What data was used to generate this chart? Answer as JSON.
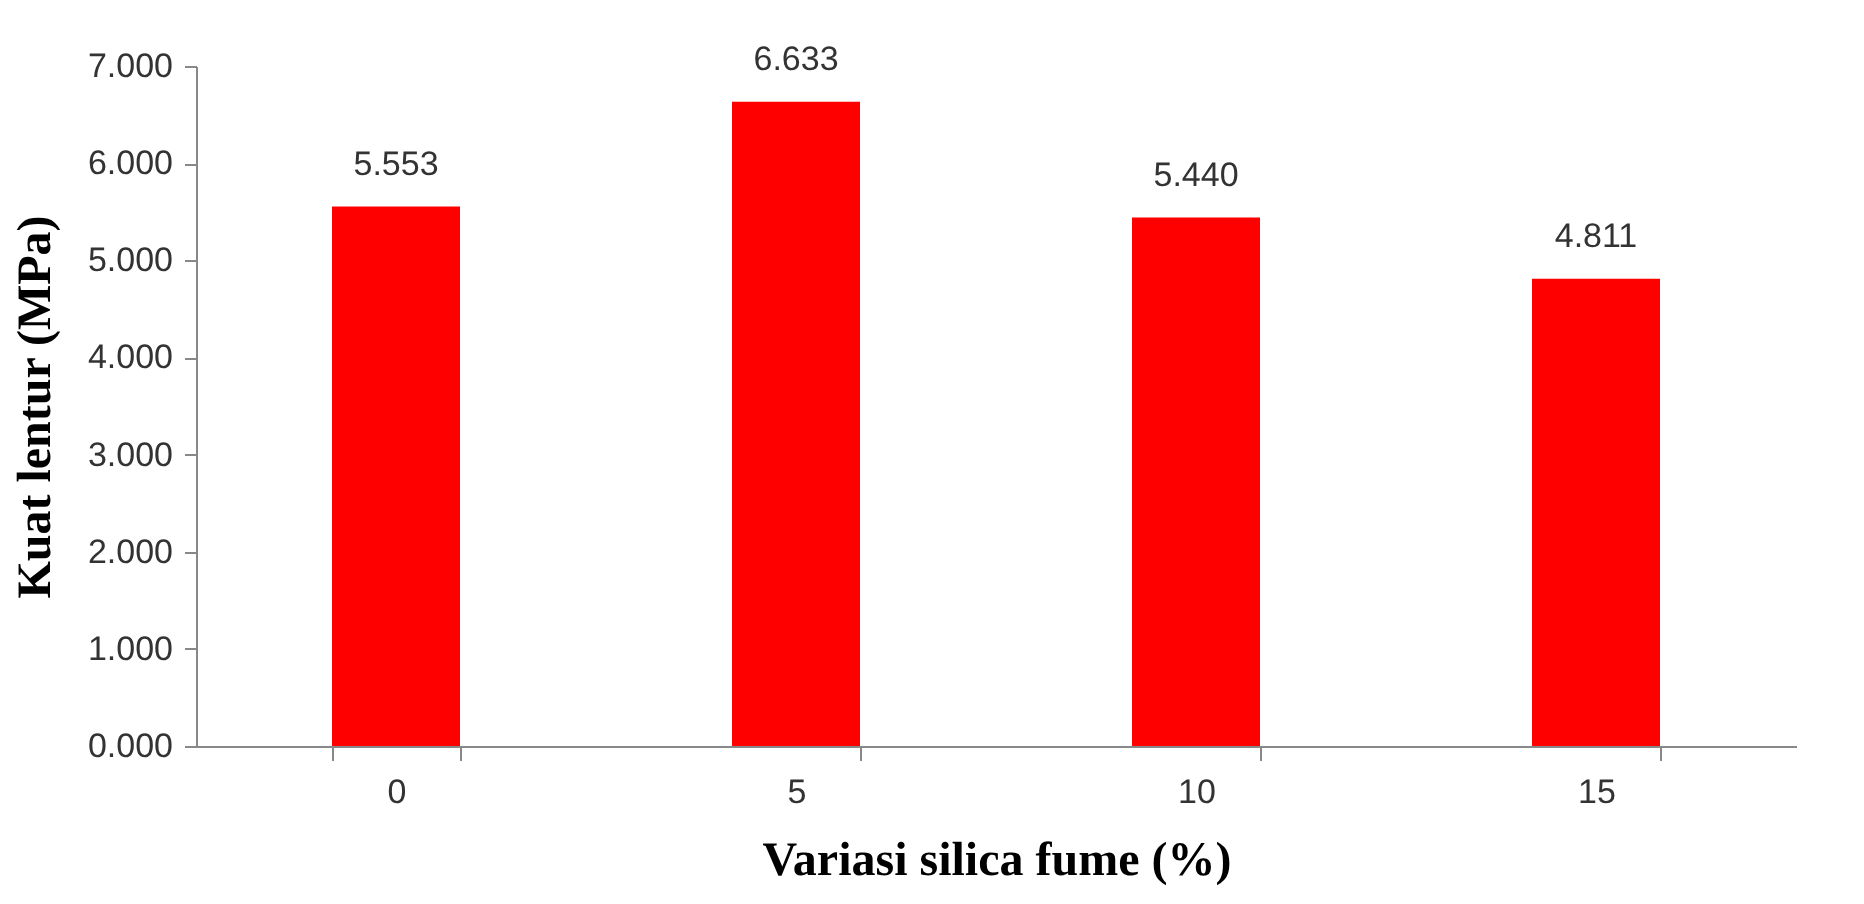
{
  "chart_data": {
    "type": "bar",
    "xlabel": "Variasi silica fume (%)",
    "ylabel": "Kuat lentur (MPa)",
    "categories": [
      "0",
      "5",
      "10",
      "15"
    ],
    "values": [
      5.553,
      6.633,
      5.44,
      4.811
    ],
    "value_labels": [
      "5.553",
      "6.633",
      "5.440",
      "4.811"
    ],
    "color": "#ff0000",
    "ylim": [
      0,
      7
    ],
    "yticks": [
      {
        "value": 0,
        "label": "0.000"
      },
      {
        "value": 1,
        "label": "1.000"
      },
      {
        "value": 2,
        "label": "2.000"
      },
      {
        "value": 3,
        "label": "3.000"
      },
      {
        "value": 4,
        "label": "4.000"
      },
      {
        "value": 5,
        "label": "5.000"
      },
      {
        "value": 6,
        "label": "6.000"
      },
      {
        "value": 7,
        "label": "7.000"
      }
    ],
    "grid": false
  }
}
